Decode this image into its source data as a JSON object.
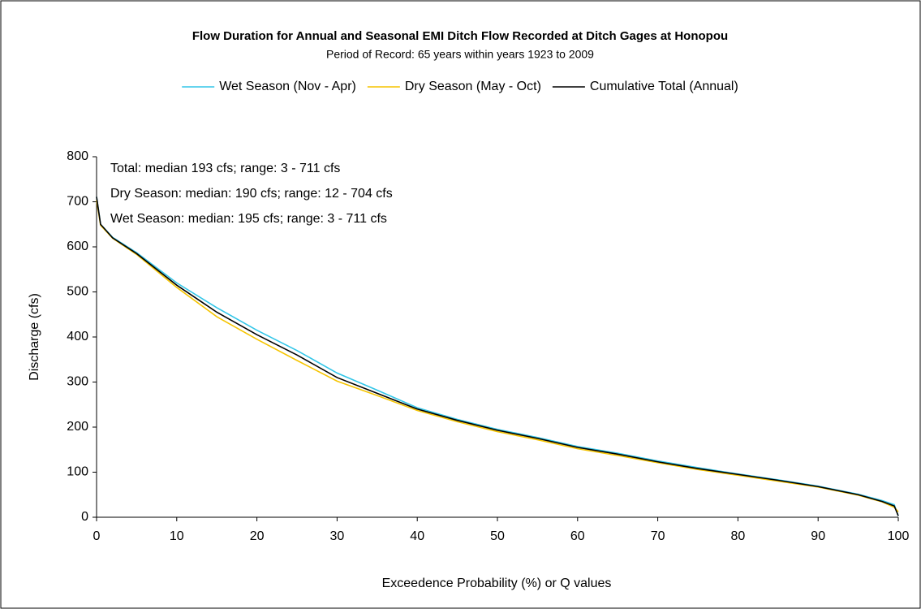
{
  "chart_data": {
    "type": "line",
    "title": "Flow Duration for Annual and Seasonal EMI Ditch Flow Recorded at Ditch Gages at Honopou",
    "subtitle": "Period of Record: 65 years within years 1923 to 2009",
    "x_label": "Exceedence Probability (%) or Q values",
    "y_label": "Discharge (cfs)",
    "annotations": [
      "Total:  median 193 cfs; range:  3 - 711 cfs",
      "Dry Season:  median: 190 cfs; range: 12 - 704 cfs",
      "Wet Season:  median: 195 cfs; range: 3 - 711 cfs"
    ],
    "x": [
      0,
      0.5,
      2,
      5,
      10,
      15,
      20,
      25,
      30,
      35,
      40,
      45,
      50,
      55,
      60,
      65,
      70,
      75,
      80,
      85,
      90,
      95,
      98,
      99.5,
      100
    ],
    "series": [
      {
        "name": "Wet Season (Nov - Apr)",
        "color": "#33c6e8",
        "values": [
          711,
          650,
          621,
          587,
          520,
          465,
          415,
          370,
          320,
          282,
          243,
          217,
          195,
          177,
          157,
          142,
          125,
          110,
          96,
          83,
          69,
          51,
          37,
          28,
          3
        ]
      },
      {
        "name": "Dry Season (May - Oct)",
        "color": "#f5c400",
        "values": [
          704,
          648,
          619,
          583,
          510,
          445,
          395,
          348,
          302,
          270,
          237,
          212,
          190,
          172,
          152,
          137,
          121,
          106,
          93,
          80,
          67,
          49,
          34,
          22,
          12
        ]
      },
      {
        "name": "Cumulative Total (Annual)",
        "color": "#000000",
        "values": [
          711,
          650,
          620,
          585,
          515,
          455,
          405,
          360,
          310,
          275,
          240,
          215,
          193,
          175,
          155,
          140,
          123,
          108,
          95,
          82,
          68,
          50,
          35,
          25,
          3
        ]
      }
    ],
    "xlim": [
      0,
      100
    ],
    "xticks": [
      0,
      10,
      20,
      30,
      40,
      50,
      60,
      70,
      80,
      90,
      100
    ],
    "ylim": [
      0,
      800
    ],
    "yticks": [
      0,
      100,
      200,
      300,
      400,
      500,
      600,
      700,
      800
    ],
    "grid": false,
    "legend": "top"
  }
}
